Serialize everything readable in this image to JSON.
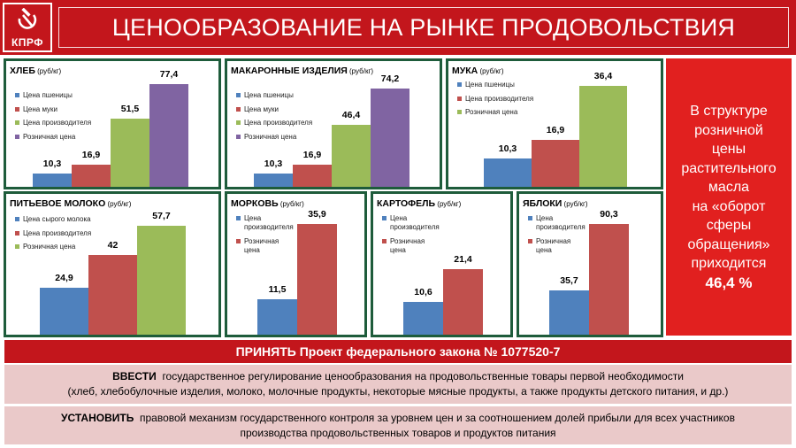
{
  "header": {
    "logo_text": "КПРФ",
    "title": "ЦЕНООБРАЗОВАНИЕ НА РЫНКЕ ПРОДОВОЛЬСТВИЯ"
  },
  "colors": {
    "header_red": "#c3161c",
    "panel_border": "#1e5c3b",
    "blue": "#4f81bd",
    "red": "#c0504d",
    "green": "#9bbb59",
    "purple": "#8064a2",
    "sidebox_red": "#e1201f",
    "box_pink": "#eac9c9"
  },
  "chart_data": [
    {
      "type": "bar",
      "title": "ХЛЕБ",
      "unit": "(руб/кг)",
      "categories": [
        "Цена пшеницы",
        "Цена муки",
        "Цена производителя",
        "Розничная цена"
      ],
      "values": [
        10.3,
        16.9,
        51.5,
        77.4
      ],
      "labels": [
        "10,3",
        "16,9",
        "51,5",
        "77,4"
      ]
    },
    {
      "type": "bar",
      "title": "МАКАРОННЫЕ ИЗДЕЛИЯ",
      "unit": "(руб/кг)",
      "categories": [
        "Цена пшеницы",
        "Цена муки",
        "Цена производителя",
        "Розничная цена"
      ],
      "values": [
        10.3,
        16.9,
        46.4,
        74.2
      ],
      "labels": [
        "10,3",
        "16,9",
        "46,4",
        "74,2"
      ]
    },
    {
      "type": "bar",
      "title": "МУКА",
      "unit": "(руб/кг)",
      "categories": [
        "Цена пшеницы",
        "Цена производителя",
        "Розничная цена"
      ],
      "values": [
        10.3,
        16.9,
        36.4
      ],
      "labels": [
        "10,3",
        "16,9",
        "36,4"
      ]
    },
    {
      "type": "bar",
      "title": "ПИТЬЕВОЕ МОЛОКО",
      "unit": "(руб/кг)",
      "categories": [
        "Цена сырого молока",
        "Цена производителя",
        "Розничная цена"
      ],
      "values": [
        24.9,
        42,
        57.7
      ],
      "labels": [
        "24,9",
        "42",
        "57,7"
      ]
    },
    {
      "type": "bar",
      "title": "МОРКОВЬ",
      "unit": "(руб/кг)",
      "categories": [
        "Цена производителя",
        "Розничная цена"
      ],
      "values": [
        11.5,
        35.9
      ],
      "labels": [
        "11,5",
        "35,9"
      ]
    },
    {
      "type": "bar",
      "title": "КАРТОФЕЛЬ",
      "unit": "(руб/кг)",
      "categories": [
        "Цена производителя",
        "Розничная цена"
      ],
      "values": [
        10.6,
        21.4
      ],
      "labels": [
        "10,6",
        "21,4"
      ]
    },
    {
      "type": "bar",
      "title": "ЯБЛОКИ",
      "unit": "(руб/кг)",
      "categories": [
        "Цена производителя",
        "Розничная цена"
      ],
      "values": [
        35.7,
        90.3
      ],
      "labels": [
        "35,7",
        "90,3"
      ]
    }
  ],
  "sidebox": {
    "lines": [
      "В структуре",
      "розничной",
      "цены",
      "растительного",
      "масла",
      "на «оборот",
      "сферы",
      "обращения»",
      "приходится"
    ],
    "percent": "46,4 %"
  },
  "banner": "ПРИНЯТЬ Проект федерального закона № 1077520-7",
  "box1": {
    "verb": "ВВЕСТИ",
    "line1": "государственное регулирование ценообразования на продовольственные товары первой необходимости",
    "line2": "(хлеб, хлебобулочные изделия, молоко, молочные продукты, некоторые мясные продукты, а также продукты детского питания, и др.)"
  },
  "box2": {
    "verb": "УСТАНОВИТЬ",
    "line1": "правовой  механизм государственного контроля за уровнем цен и за соотношением долей прибыли для всех участников",
    "line2": "производства продовольственных товаров и продуктов питания"
  }
}
